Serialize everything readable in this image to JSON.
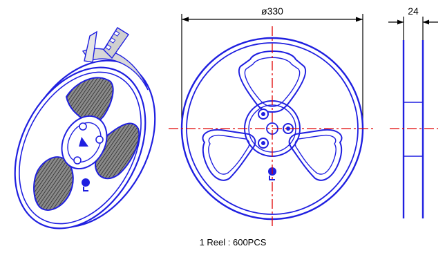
{
  "diagram": {
    "dimensions": {
      "diameter_label": "ø330",
      "width_label": "24"
    },
    "caption": "1 Reel : 600PCS",
    "colors": {
      "outline": "#1f1fe0",
      "centerline": "#e00000",
      "dimension": "#000000",
      "hatch": "#6a6a6a"
    }
  }
}
